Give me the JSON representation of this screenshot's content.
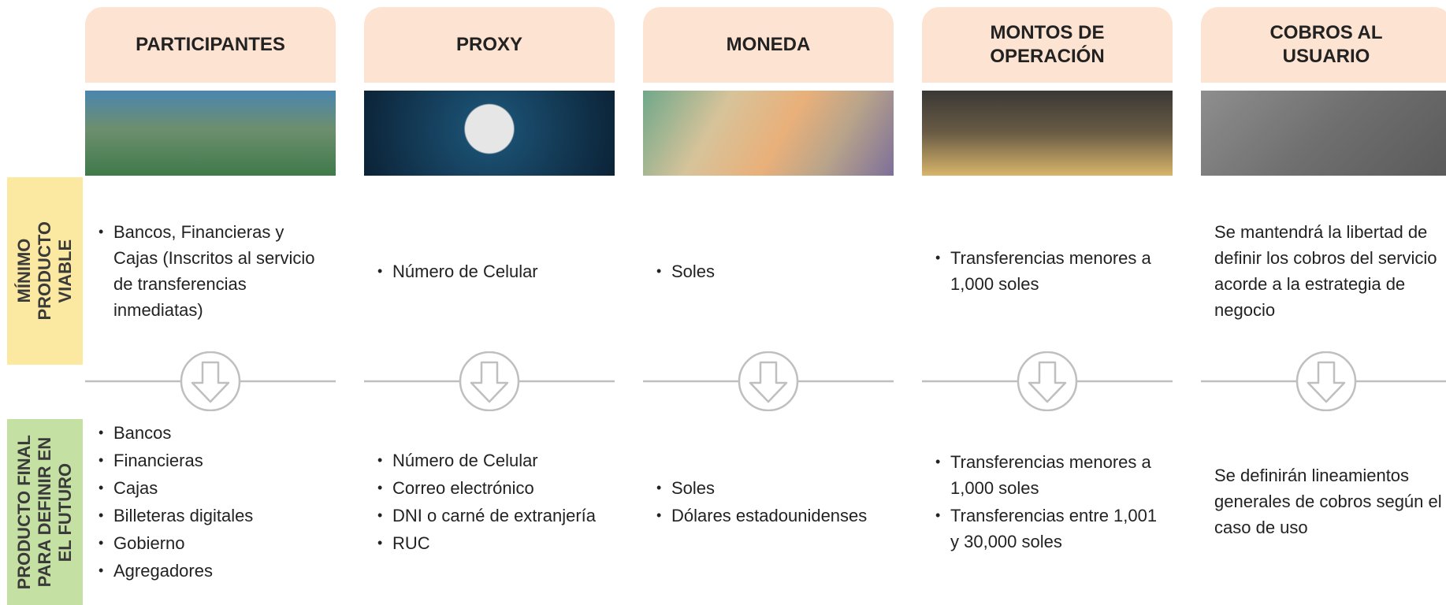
{
  "row_labels": {
    "mvp": [
      "MÍNIMO",
      "PRODUCTO",
      "VIABLE"
    ],
    "final": [
      "PRODUCTO FINAL",
      "PARA DEFINIR EN",
      "EL FUTURO"
    ]
  },
  "columns": [
    {
      "header": "PARTICIPANTES",
      "mvp": {
        "bullets": [
          "Bancos, Financieras y Cajas (Inscritos al servicio de transferencias inmediatas)"
        ]
      },
      "final": {
        "bullets": [
          "Bancos",
          "Financieras",
          "Cajas",
          "Billeteras digitales",
          "Gobierno",
          "Agregadores"
        ]
      }
    },
    {
      "header": "PROXY",
      "mvp": {
        "bullets": [
          "Número de Celular"
        ]
      },
      "final": {
        "bullets": [
          "Número de Celular",
          "Correo electrónico",
          "DNI o carné de extranjería",
          "RUC"
        ]
      }
    },
    {
      "header": "MONEDA",
      "mvp": {
        "bullets": [
          "Soles"
        ]
      },
      "final": {
        "bullets": [
          "Soles",
          "Dólares estadounidenses"
        ]
      }
    },
    {
      "header": "MONTOS DE OPERACIÓN",
      "mvp": {
        "bullets": [
          "Transferencias menores a 1,000 soles"
        ]
      },
      "final": {
        "bullets": [
          "Transferencias menores a 1,000 soles",
          "Transferencias entre 1,001 y 30,000 soles"
        ]
      }
    },
    {
      "header": "COBROS AL USUARIO",
      "mvp": {
        "text": "Se mantendrá la libertad de definir los cobros del servicio acorde a la estrategia de negocio"
      },
      "final": {
        "text": "Se definirán lineamientos generales de cobros según el caso de uso"
      }
    }
  ]
}
